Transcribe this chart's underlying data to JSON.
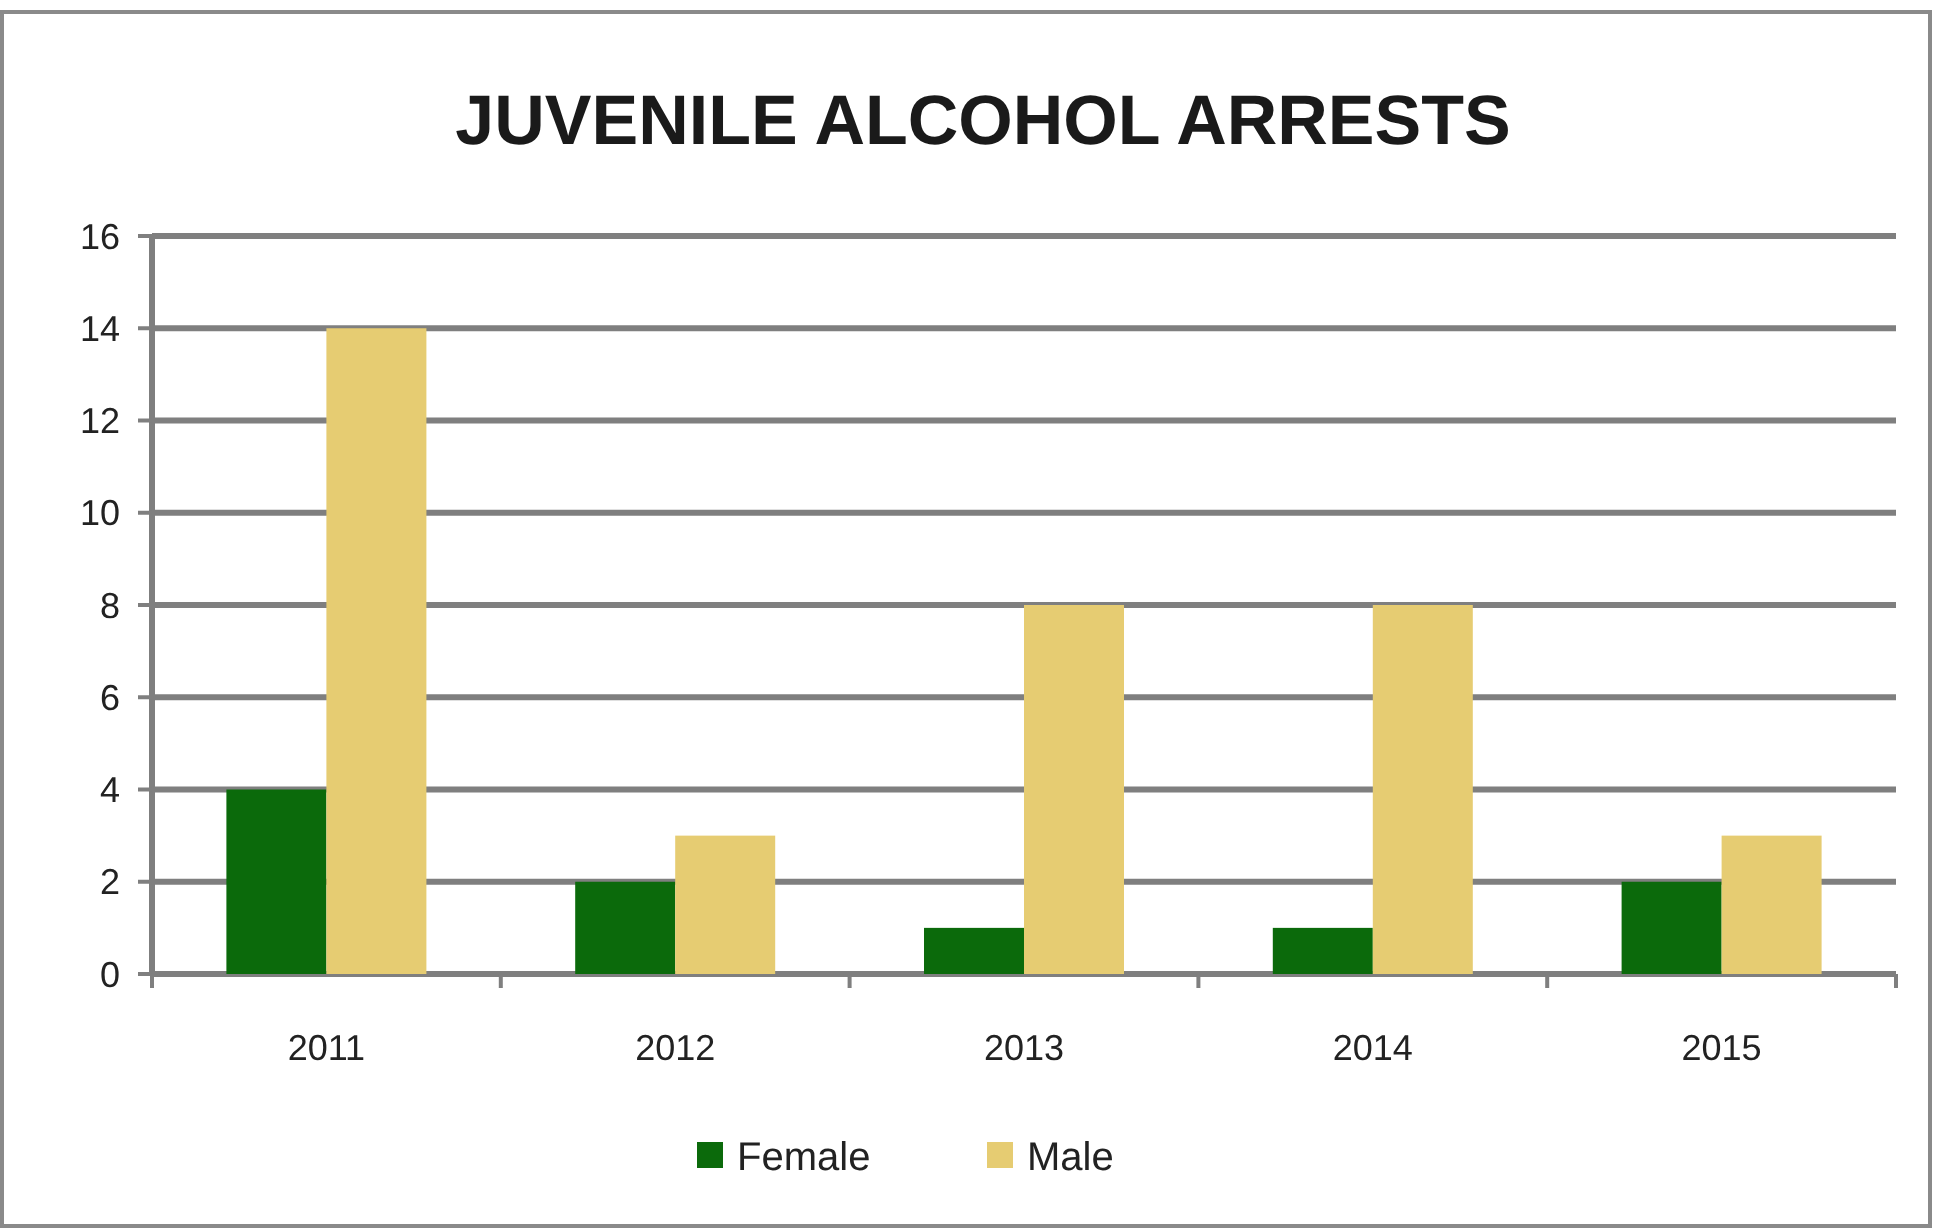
{
  "chart_data": {
    "type": "bar",
    "title": "JUVENILE ALCOHOL ARRESTS",
    "categories": [
      "2011",
      "2012",
      "2013",
      "2014",
      "2015"
    ],
    "series": [
      {
        "name": "Female",
        "color": "#0b6a0b",
        "values": [
          4,
          2,
          1,
          1,
          2
        ]
      },
      {
        "name": "Male",
        "color": "#e6cc72",
        "values": [
          14,
          3,
          8,
          8,
          3
        ]
      }
    ],
    "ylim": [
      0,
      16
    ],
    "yticks": [
      0,
      2,
      4,
      6,
      8,
      10,
      12,
      14,
      16
    ],
    "grid": "y",
    "legend": "bottom"
  }
}
